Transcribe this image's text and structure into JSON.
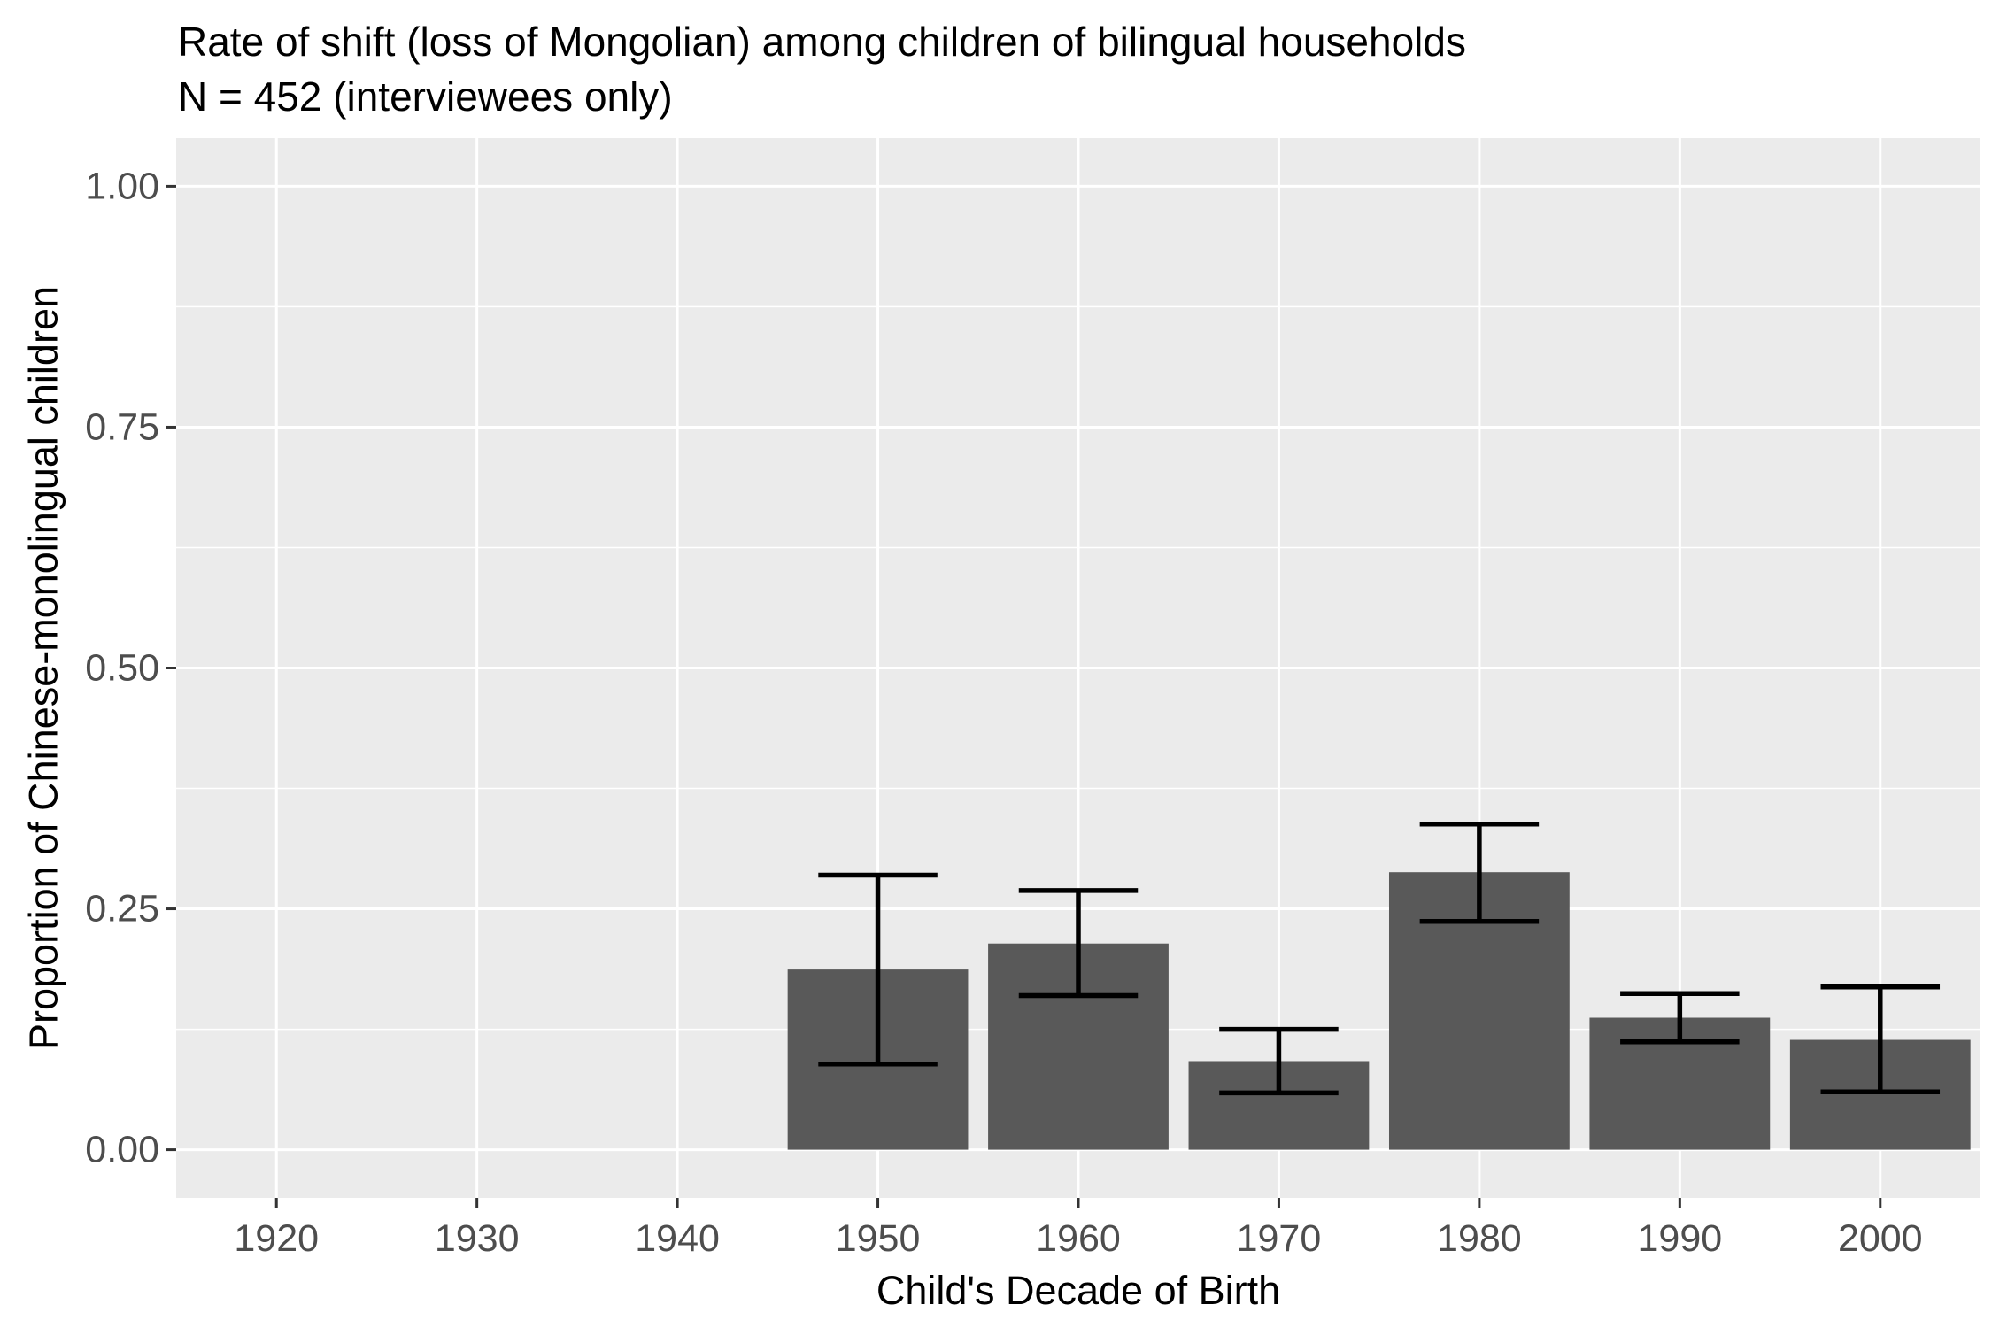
{
  "chart_data": {
    "type": "bar",
    "title": "Rate of shift (loss of Mongolian) among children of bilingual households",
    "subtitle": "N = 452 (interviewees only)",
    "xlabel": "Child's Decade of Birth",
    "ylabel": "Proportion of Chinese-monolingual children",
    "categories": [
      "1920",
      "1930",
      "1940",
      "1950",
      "1960",
      "1970",
      "1980",
      "1990",
      "2000"
    ],
    "values": [
      null,
      null,
      null,
      0.187,
      0.214,
      0.092,
      0.288,
      0.137,
      0.114
    ],
    "error_low": [
      null,
      null,
      null,
      0.089,
      0.16,
      0.059,
      0.237,
      0.112,
      0.06
    ],
    "error_high": [
      null,
      null,
      null,
      0.285,
      0.269,
      0.125,
      0.338,
      0.162,
      0.169
    ],
    "ylim": [
      -0.05,
      1.05
    ],
    "yticks": [
      0.0,
      0.25,
      0.5,
      0.75,
      1.0
    ],
    "ytick_labels": [
      "0.00",
      "0.25",
      "0.50",
      "0.75",
      "1.00"
    ],
    "grid": true,
    "colors": {
      "bar": "#595959",
      "panel": "#ebebeb",
      "grid": "#ffffff",
      "errorbar": "#000000"
    }
  }
}
